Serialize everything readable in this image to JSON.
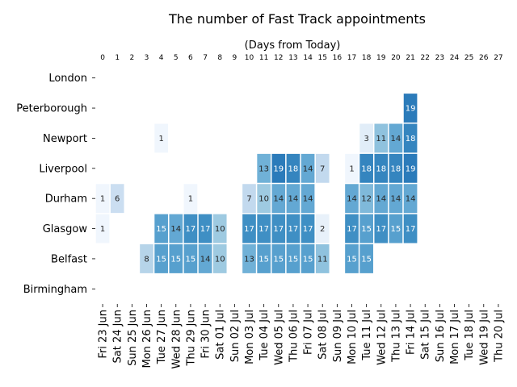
{
  "chart_data": {
    "type": "heatmap",
    "title": "The number of Fast Track appointments",
    "top_axis_label": "(Days from Today)",
    "top_ticks": [
      "0",
      "1",
      "2",
      "3",
      "4",
      "5",
      "6",
      "7",
      "8",
      "9",
      "10",
      "11",
      "12",
      "13",
      "14",
      "15",
      "16",
      "17",
      "18",
      "19",
      "20",
      "21",
      "22",
      "23",
      "24",
      "25",
      "26",
      "27"
    ],
    "x_categories": [
      "Fri 23 Jun",
      "Sat 24 Jun",
      "Sun 25 Jun",
      "Mon 26 Jun",
      "Tue 27 Jun",
      "Wed 28 Jun",
      "Thu 29 Jun",
      "Fri 30 Jun",
      "Sat 01 Jul",
      "Sun 02 Jul",
      "Mon 03 Jul",
      "Tue 04 Jul",
      "Wed 05 Jul",
      "Thu 06 Jul",
      "Fri 07 Jul",
      "Sat 08 Jul",
      "Sun 09 Jul",
      "Mon 10 Jul",
      "Tue 11 Jul",
      "Wed 12 Jul",
      "Thu 13 Jul",
      "Fri 14 Jul",
      "Sat 15 Jul",
      "Sun 16 Jul",
      "Mon 17 Jul",
      "Tue 18 Jul",
      "Wed 19 Jul",
      "Thu 20 Jul"
    ],
    "y_categories": [
      "London",
      "Peterborough",
      "Newport",
      "Liverpool",
      "Durham",
      "Glasgow",
      "Belfast",
      "Birmingham"
    ],
    "values": [
      [
        null,
        null,
        null,
        null,
        null,
        null,
        null,
        null,
        null,
        null,
        null,
        null,
        null,
        null,
        null,
        null,
        null,
        null,
        null,
        null,
        null,
        null,
        null,
        null,
        null,
        null,
        null,
        null
      ],
      [
        null,
        null,
        null,
        null,
        null,
        null,
        null,
        null,
        null,
        null,
        null,
        null,
        null,
        null,
        null,
        null,
        null,
        null,
        null,
        null,
        null,
        19,
        null,
        null,
        null,
        null,
        null,
        null
      ],
      [
        null,
        null,
        null,
        null,
        1,
        null,
        null,
        null,
        null,
        null,
        null,
        null,
        null,
        null,
        null,
        null,
        null,
        null,
        3,
        11,
        14,
        18,
        null,
        null,
        null,
        null,
        null,
        null
      ],
      [
        null,
        null,
        null,
        null,
        null,
        null,
        null,
        null,
        null,
        null,
        null,
        13,
        19,
        18,
        14,
        7,
        null,
        1,
        18,
        18,
        18,
        19,
        null,
        null,
        null,
        null,
        null,
        null
      ],
      [
        1,
        6,
        null,
        null,
        null,
        null,
        1,
        null,
        null,
        null,
        7,
        10,
        14,
        14,
        14,
        null,
        null,
        14,
        12,
        14,
        14,
        14,
        null,
        null,
        null,
        null,
        null,
        null
      ],
      [
        1,
        null,
        null,
        null,
        15,
        14,
        17,
        17,
        10,
        null,
        17,
        17,
        17,
        17,
        17,
        2,
        null,
        17,
        15,
        17,
        15,
        17,
        null,
        null,
        null,
        null,
        null,
        null
      ],
      [
        null,
        null,
        null,
        8,
        15,
        15,
        15,
        14,
        10,
        null,
        13,
        15,
        15,
        15,
        15,
        11,
        null,
        15,
        15,
        null,
        null,
        null,
        null,
        null,
        null,
        null,
        null,
        null
      ],
      [
        null,
        null,
        null,
        null,
        null,
        null,
        null,
        null,
        null,
        null,
        null,
        null,
        null,
        null,
        null,
        null,
        null,
        null,
        null,
        null,
        null,
        null,
        null,
        null,
        null,
        null,
        null,
        null
      ]
    ],
    "colormap": [
      "#f7fbff",
      "#deebf7",
      "#c6dbef",
      "#9ecae1",
      "#6baed6",
      "#4292c6",
      "#2171b5"
    ],
    "value_range": [
      0,
      20
    ]
  }
}
